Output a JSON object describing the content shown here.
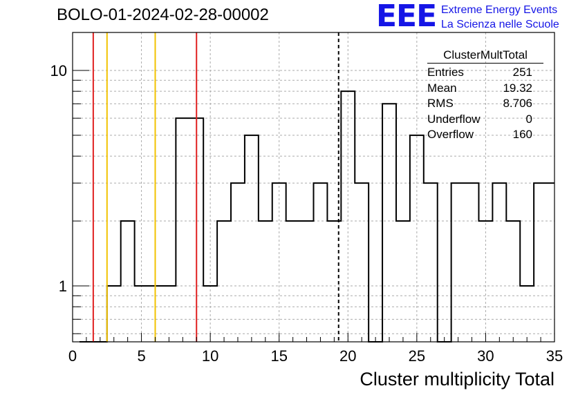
{
  "header": {
    "title": "BOLO-01-2024-02-28-00002"
  },
  "logo": {
    "mark": "EEE",
    "line1": "Extreme Energy Events",
    "line2": "La Scienza nelle Scuole"
  },
  "stats": {
    "title": "ClusterMultTotal",
    "rows": [
      {
        "label": "Entries",
        "value": "251"
      },
      {
        "label": "Mean",
        "value": "19.32"
      },
      {
        "label": "RMS",
        "value": "8.706"
      },
      {
        "label": "Underflow",
        "value": "0"
      },
      {
        "label": "Overflow",
        "value": "160"
      }
    ]
  },
  "chart_data": {
    "type": "histogram",
    "xlabel": "Cluster multiplicity Total",
    "ylabel": "",
    "xlim": [
      0,
      35
    ],
    "ylim": [
      0.55,
      15
    ],
    "yscale": "log",
    "grid": true,
    "x_ticks": [
      0,
      5,
      10,
      15,
      20,
      25,
      30,
      35
    ],
    "y_ticks": [
      1,
      10
    ],
    "bins": {
      "edges": [
        0.5,
        1.5,
        2.5,
        3.5,
        4.5,
        5.5,
        6.5,
        7.5,
        8.5,
        9.5,
        10.5,
        11.5,
        12.5,
        13.5,
        14.5,
        15.5,
        16.5,
        17.5,
        18.5,
        19.5,
        20.5,
        21.5,
        22.5,
        23.5,
        24.5,
        25.5,
        26.5,
        27.5,
        28.5,
        29.5,
        30.5,
        31.5,
        32.5,
        33.5,
        34.5,
        35.0
      ],
      "counts": [
        0,
        0,
        1,
        2,
        1,
        1,
        1,
        6,
        6,
        1,
        2,
        3,
        5,
        2,
        3,
        2,
        2,
        3,
        2,
        8,
        3,
        0,
        7,
        2,
        5,
        3,
        0,
        3,
        3,
        2,
        3,
        2,
        1,
        3,
        3
      ]
    },
    "vertical_lines": [
      {
        "x": 1.5,
        "color": "#e02020",
        "style": "solid"
      },
      {
        "x": 2.5,
        "color": "#f2c200",
        "style": "solid"
      },
      {
        "x": 6.0,
        "color": "#f2c200",
        "style": "solid"
      },
      {
        "x": 9.0,
        "color": "#e02020",
        "style": "solid"
      },
      {
        "x": 19.32,
        "color": "#000000",
        "style": "dashed"
      }
    ]
  }
}
